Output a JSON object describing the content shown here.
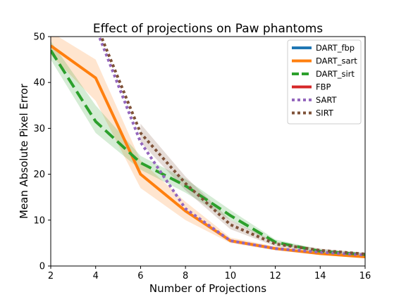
{
  "chart_data": {
    "type": "line",
    "title": "Effect of projections on Paw phantoms",
    "xlabel": "Number of Projections",
    "ylabel": "Mean Absolute Pixel Error",
    "xlim": [
      2,
      16
    ],
    "ylim": [
      0,
      50
    ],
    "xticks": [
      2,
      4,
      6,
      8,
      10,
      12,
      14,
      16
    ],
    "yticks": [
      0,
      10,
      20,
      30,
      40,
      50
    ],
    "legend_position": "top-right",
    "grid": false,
    "x": [
      2,
      4,
      6,
      8,
      10,
      12,
      14,
      16
    ],
    "series": [
      {
        "name": "DART_fbp",
        "style": "solid",
        "color": "#1f77b4",
        "values": [
          null,
          null,
          null,
          null,
          null,
          null,
          null,
          null
        ],
        "band_low": [],
        "band_high": []
      },
      {
        "name": "DART_sart",
        "style": "solid",
        "color": "#ff7f0e",
        "values": [
          48,
          41,
          20,
          12,
          5.5,
          3.8,
          2.7,
          2.0
        ],
        "band_low": [
          46,
          36,
          17,
          10,
          5,
          3.4,
          2.4,
          1.7
        ],
        "band_high": [
          51,
          45,
          23,
          14,
          6.2,
          4.3,
          3.0,
          2.3
        ]
      },
      {
        "name": "DART_sirt",
        "style": "dashed",
        "color": "#2ca02c",
        "values": [
          47,
          31.5,
          22.5,
          17.5,
          11,
          5.2,
          3.2,
          2.5
        ],
        "band_low": [
          45,
          29,
          21,
          16,
          10,
          4.8,
          2.9,
          2.2
        ],
        "band_high": [
          49,
          35,
          24,
          19,
          12.2,
          5.8,
          3.6,
          2.8
        ]
      },
      {
        "name": "FBP",
        "style": "solid",
        "color": "#d62728",
        "values": [
          null,
          null,
          null,
          null,
          null,
          null,
          null,
          null
        ],
        "band_low": [],
        "band_high": []
      },
      {
        "name": "SART",
        "style": "dotted",
        "color": "#9467bd",
        "values": [
          null,
          52,
          27,
          12.5,
          5.5,
          3.8,
          3.0,
          2.4
        ],
        "band_low": [],
        "band_high": []
      },
      {
        "name": "SIRT",
        "style": "dotted",
        "color": "#7f5238",
        "values": [
          null,
          53,
          29,
          18,
          9,
          4.8,
          3.4,
          2.6
        ],
        "band_low": [
          null,
          null,
          27,
          16.5,
          8,
          4.3,
          3.0,
          2.3
        ],
        "band_high": [
          null,
          null,
          31,
          19.5,
          10,
          5.3,
          3.8,
          2.9
        ]
      }
    ]
  }
}
